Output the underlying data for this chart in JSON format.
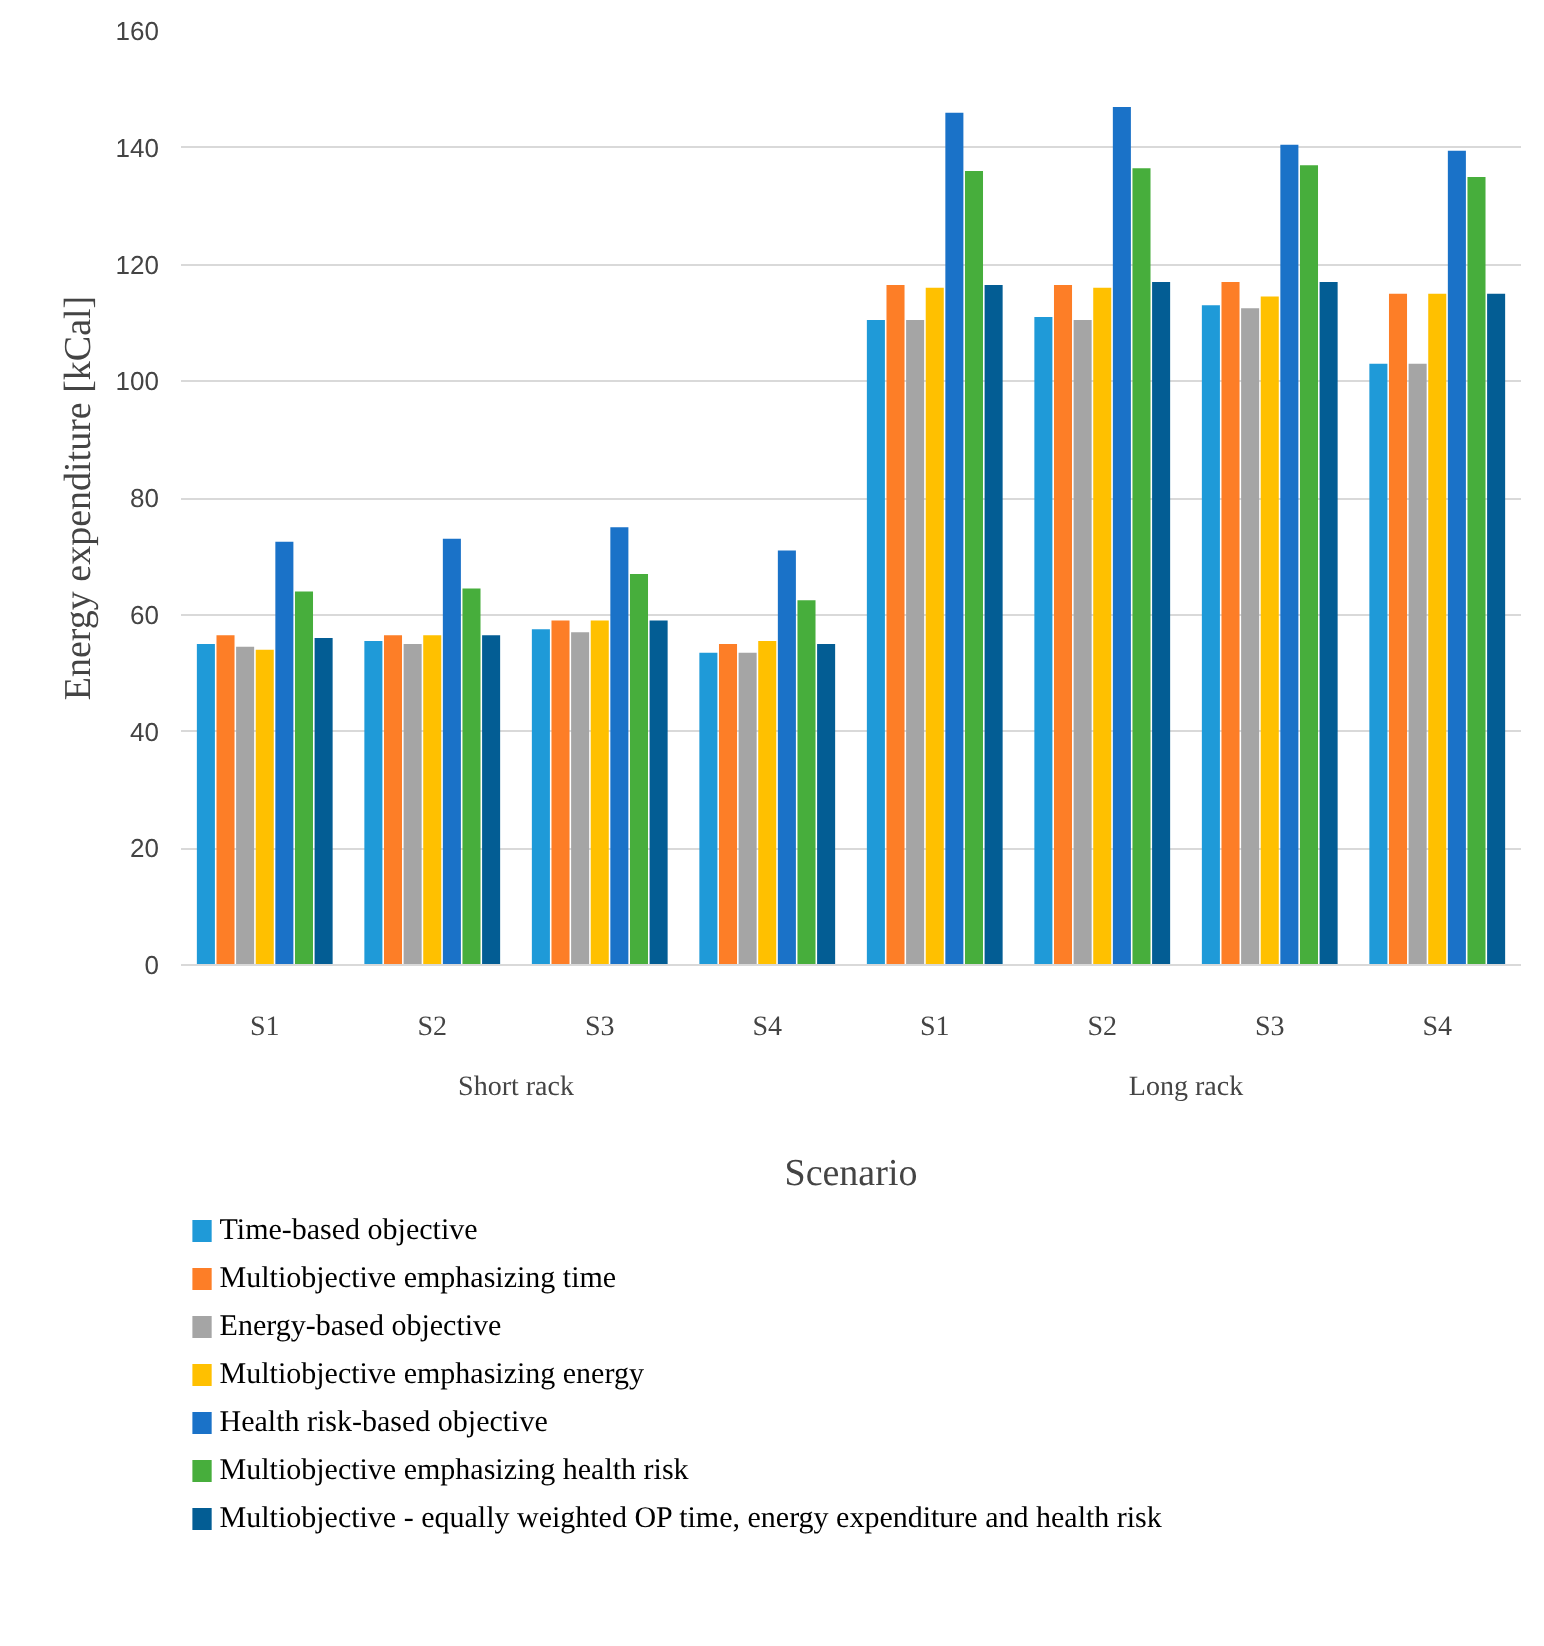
{
  "chart_data": {
    "type": "bar",
    "ylabel": "Energy expenditure [kCal]",
    "xlabel": "Scenario",
    "categories": [
      "S1",
      "S2",
      "S3",
      "S4",
      "S1",
      "S2",
      "S3",
      "S4"
    ],
    "annotations": [
      "Short rack",
      "Long rack"
    ],
    "ylim": [
      0,
      160
    ],
    "yticks": [
      0,
      20,
      40,
      60,
      80,
      100,
      120,
      140,
      160
    ],
    "grid": "y",
    "legend": "bottom",
    "series": [
      {
        "name": "Time-based objective",
        "color": "#1f9ad8",
        "values": [
          55,
          55.5,
          57.5,
          53.5,
          110.5,
          111,
          113,
          103
        ]
      },
      {
        "name": "Multiobjective emphasizing time",
        "color": "#fd7e27",
        "values": [
          56.5,
          56.5,
          59,
          55,
          116.5,
          116.5,
          117,
          115
        ]
      },
      {
        "name": "Energy-based objective",
        "color": "#a5a5a5",
        "values": [
          54.5,
          55,
          57,
          53.5,
          110.5,
          110.5,
          112.5,
          103
        ]
      },
      {
        "name": "Multiobjective emphasizing energy",
        "color": "#ffc000",
        "values": [
          54,
          56.5,
          59,
          55.5,
          116,
          116,
          114.5,
          115
        ]
      },
      {
        "name": "Health risk-based objective",
        "color": "#1a72c8",
        "values": [
          72.5,
          73,
          75,
          71,
          146,
          147,
          140.5,
          139.5
        ]
      },
      {
        "name": "Multiobjective emphasizing health risk",
        "color": "#47ae3c",
        "values": [
          64,
          64.5,
          67,
          62.5,
          136,
          136.5,
          137,
          135
        ]
      },
      {
        "name": "Multiobjective - equally weighted OP time, energy expenditure and health risk",
        "color": "#035d94",
        "values": [
          56,
          56.5,
          59,
          55,
          116.5,
          117,
          117,
          115
        ]
      }
    ]
  }
}
